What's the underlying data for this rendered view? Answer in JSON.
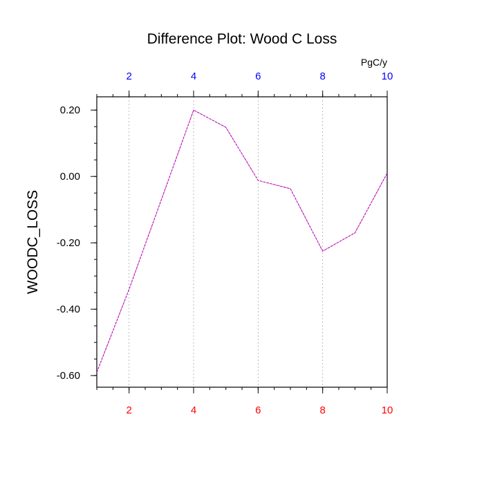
{
  "chart_data": {
    "type": "line",
    "title": "Difference Plot: Wood C Loss",
    "ylabel": "WOODC_LOSS",
    "units_label": "PgC/y",
    "xlim": [
      1,
      10
    ],
    "ylim": [
      -0.635,
      0.24
    ],
    "x": [
      1,
      2,
      3,
      4,
      5,
      6,
      7,
      8,
      9,
      10
    ],
    "series": [
      {
        "values": [
          -0.59,
          -0.34,
          -0.07,
          0.2,
          0.148,
          -0.012,
          -0.037,
          -0.225,
          -0.17,
          0.01
        ],
        "color": "#9900ff"
      }
    ],
    "xticks_bottom": [
      2,
      4,
      6,
      8,
      10
    ],
    "xtick_labels_bottom": [
      "2",
      "4",
      "6",
      "8",
      "10"
    ],
    "xtick_color_bottom": "#ff0000",
    "xticks_top": [
      2,
      4,
      6,
      8,
      10
    ],
    "xtick_labels_top": [
      "2",
      "4",
      "6",
      "8",
      "10"
    ],
    "xtick_color_top": "#0000ff",
    "yticks": [
      0.2,
      0.0,
      -0.2,
      -0.4,
      -0.6
    ],
    "ytick_labels": [
      "0.20",
      "0.00",
      "-0.20",
      "-0.40",
      "-0.60"
    ],
    "grid": "vertical-dotted",
    "legend": "none"
  }
}
